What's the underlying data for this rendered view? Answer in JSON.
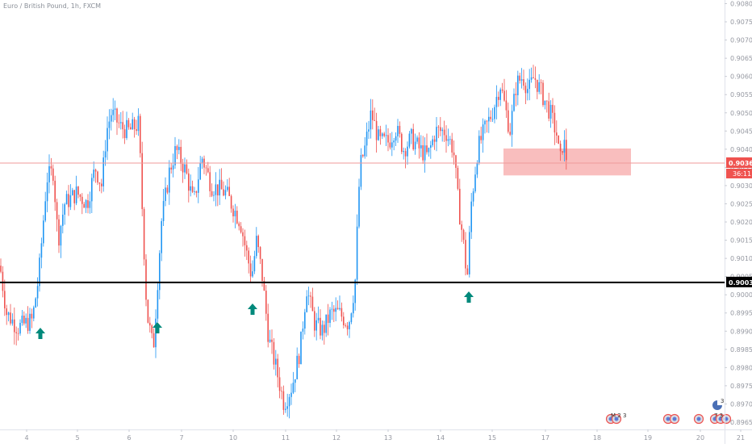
{
  "header": {
    "symbol_title": "Euro / British Pound, 1h, FXCM"
  },
  "price_axis": {
    "labels": [
      "0.90800",
      "0.90750",
      "0.90700",
      "0.90650",
      "0.90600",
      "0.90550",
      "0.90500",
      "0.90450",
      "0.90400",
      "0.90350",
      "0.90300",
      "0.90250",
      "0.90200",
      "0.90150",
      "0.90100",
      "0.90050",
      "0.90000",
      "0.89950",
      "0.89900",
      "0.89850",
      "0.89800",
      "0.89750",
      "0.89700",
      "0.89650"
    ],
    "current_price_label": "0.90362",
    "countdown_label": "36:11",
    "level_label": "0.90034"
  },
  "time_axis": {
    "labels": [
      "4",
      "5",
      "6",
      "7",
      "10",
      "11",
      "12",
      "13",
      "14",
      "15",
      "17",
      "18",
      "19",
      "20",
      "21"
    ]
  },
  "colors": {
    "up": "#2196f3",
    "down": "#ef5350",
    "arrow": "#00897b",
    "level_line": "#000000",
    "price_line": "#ef9a9a",
    "zone_fill": "#f8b3b3",
    "current_price_bg": "#ef5350",
    "axis_text": "#9598a1",
    "event_icon_fill": "#d9dbe3",
    "event_icon_stroke": "#ef5350"
  },
  "chart_data": {
    "type": "candlestick",
    "title": "Euro / British Pound, 1h, FXCM",
    "ylim": [
      0.8963,
      0.9081
    ],
    "grid": false,
    "level_line": 0.90034,
    "current_price": 0.90362,
    "supply_zone": {
      "from": "17",
      "to": "19",
      "top": 0.90402,
      "bottom": 0.90328
    },
    "buy_arrows": [
      "4",
      "6",
      "10",
      "14"
    ],
    "session_closes": [
      {
        "x": "4",
        "close": 0.8992
      },
      {
        "x": "5",
        "close": 0.9028
      },
      {
        "x": "6",
        "close": 0.9045
      },
      {
        "x": "7",
        "close": 0.9038
      },
      {
        "x": "10",
        "close": 0.901
      },
      {
        "x": "11",
        "close": 0.8975
      },
      {
        "x": "12",
        "close": 0.904
      },
      {
        "x": "13",
        "close": 0.9043
      },
      {
        "x": "14",
        "close": 0.904
      },
      {
        "x": "15",
        "close": 0.9005
      },
      {
        "x": "17",
        "close": 0.905
      },
      {
        "x": "18",
        "close": 0.9036
      }
    ],
    "event_markers": [
      {
        "x": "19",
        "label": "M 2 3"
      },
      {
        "x": "20",
        "label": ""
      },
      {
        "x": "21",
        "label": "7 3"
      },
      {
        "x": "21",
        "label": "3"
      }
    ]
  }
}
